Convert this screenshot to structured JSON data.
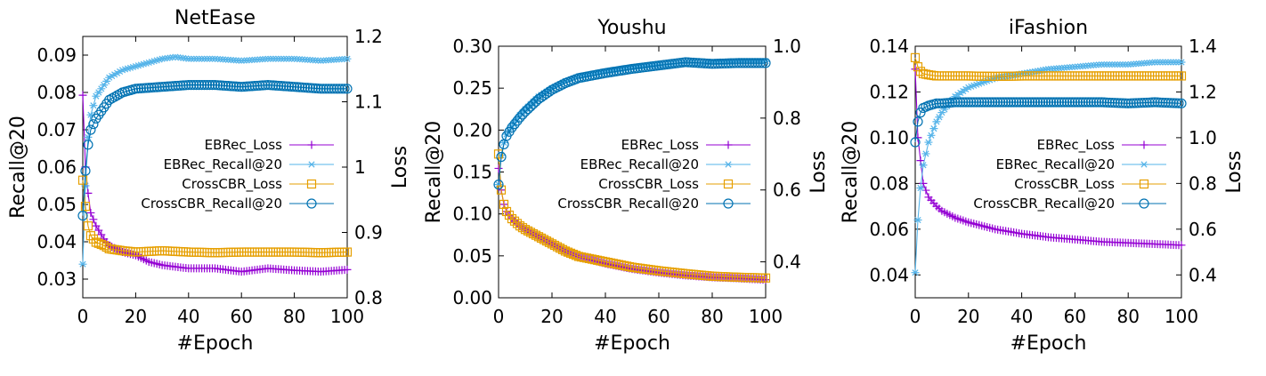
{
  "chart_data": [
    {
      "type": "line",
      "title": "NetEase",
      "xlabel": "#Epoch",
      "ylabel": "Recall@20",
      "y2label": "Loss",
      "xlim": [
        0,
        100
      ],
      "ylim": [
        0.025,
        0.095
      ],
      "y2lim": [
        0.8,
        1.2
      ],
      "xticks": [
        "0",
        "20",
        "40",
        "60",
        "80",
        "100"
      ],
      "yticks": [
        "0.03",
        "0.04",
        "0.05",
        "0.06",
        "0.07",
        "0.08",
        "0.09"
      ],
      "y2ticks": [
        "0.8",
        "0.9",
        "1",
        "1.1",
        "1.2"
      ],
      "legend_position": "center-right",
      "series": [
        {
          "name": "EBRec_Loss",
          "axis": "right",
          "color": "#9400d3",
          "marker": "plus",
          "x": [
            0,
            1,
            2,
            3,
            5,
            8,
            10,
            15,
            20,
            25,
            30,
            40,
            50,
            60,
            70,
            80,
            90,
            100
          ],
          "values": [
            1.11,
            1.0,
            0.96,
            0.93,
            0.91,
            0.89,
            0.88,
            0.87,
            0.865,
            0.855,
            0.85,
            0.845,
            0.845,
            0.84,
            0.845,
            0.842,
            0.84,
            0.843
          ]
        },
        {
          "name": "EBRec_Recall@20",
          "axis": "left",
          "color": "#56b4e9",
          "marker": "star",
          "x": [
            0,
            1,
            2,
            3,
            5,
            8,
            10,
            15,
            20,
            30,
            35,
            40,
            50,
            60,
            70,
            80,
            90,
            100
          ],
          "values": [
            0.034,
            0.055,
            0.068,
            0.074,
            0.079,
            0.082,
            0.084,
            0.086,
            0.087,
            0.089,
            0.0895,
            0.089,
            0.089,
            0.0885,
            0.089,
            0.089,
            0.0885,
            0.089
          ]
        },
        {
          "name": "CrossCBR_Loss",
          "axis": "right",
          "color": "#e69f00",
          "marker": "square",
          "x": [
            0,
            1,
            2,
            3,
            5,
            8,
            10,
            15,
            20,
            30,
            40,
            50,
            60,
            70,
            80,
            90,
            100
          ],
          "values": [
            0.98,
            0.94,
            0.91,
            0.895,
            0.885,
            0.88,
            0.875,
            0.872,
            0.87,
            0.872,
            0.87,
            0.869,
            0.87,
            0.87,
            0.87,
            0.869,
            0.87
          ]
        },
        {
          "name": "CrossCBR_Recall@20",
          "axis": "left",
          "color": "#0072b2",
          "marker": "circle",
          "x": [
            0,
            1,
            2,
            3,
            5,
            8,
            10,
            15,
            20,
            30,
            40,
            50,
            60,
            70,
            80,
            90,
            100
          ],
          "values": [
            0.047,
            0.059,
            0.066,
            0.07,
            0.073,
            0.076,
            0.078,
            0.08,
            0.081,
            0.0815,
            0.082,
            0.082,
            0.0815,
            0.082,
            0.0815,
            0.081,
            0.081
          ]
        }
      ]
    },
    {
      "type": "line",
      "title": "Youshu",
      "xlabel": "#Epoch",
      "ylabel": "Recall@20",
      "y2label": "Loss",
      "xlim": [
        0,
        100
      ],
      "ylim": [
        0,
        0.3
      ],
      "y2lim": [
        0.3,
        1.0
      ],
      "xticks": [
        "0",
        "20",
        "40",
        "60",
        "80",
        "100"
      ],
      "yticks": [
        "0.00",
        "0.05",
        "0.10",
        "0.15",
        "0.20",
        "0.25",
        "0.30"
      ],
      "y2ticks": [
        "0.4",
        "0.6",
        "0.8",
        "1.0"
      ],
      "legend_position": "center-right",
      "series": [
        {
          "name": "EBRec_Loss",
          "axis": "right",
          "color": "#9400d3",
          "marker": "plus",
          "x": [
            0,
            1,
            2,
            3,
            5,
            8,
            10,
            15,
            20,
            25,
            30,
            40,
            50,
            60,
            70,
            80,
            90,
            100
          ],
          "values": [
            0.66,
            0.6,
            0.56,
            0.54,
            0.52,
            0.5,
            0.49,
            0.47,
            0.45,
            0.43,
            0.415,
            0.395,
            0.38,
            0.37,
            0.362,
            0.357,
            0.354,
            0.35
          ]
        },
        {
          "name": "EBRec_Recall@20",
          "axis": "left",
          "color": "#56b4e9",
          "marker": "star",
          "x": [
            0,
            1,
            2,
            3,
            5,
            8,
            10,
            15,
            20,
            25,
            30,
            40,
            50,
            60,
            70,
            80,
            90,
            100
          ],
          "values": [
            0.135,
            0.17,
            0.185,
            0.195,
            0.205,
            0.218,
            0.225,
            0.24,
            0.25,
            0.258,
            0.264,
            0.27,
            0.275,
            0.278,
            0.28,
            0.281,
            0.282,
            0.282
          ]
        },
        {
          "name": "CrossCBR_Loss",
          "axis": "right",
          "color": "#e69f00",
          "marker": "square",
          "x": [
            0,
            1,
            2,
            3,
            5,
            8,
            10,
            15,
            20,
            25,
            30,
            40,
            50,
            60,
            70,
            80,
            90,
            100
          ],
          "values": [
            0.7,
            0.6,
            0.56,
            0.54,
            0.52,
            0.5,
            0.49,
            0.47,
            0.45,
            0.43,
            0.415,
            0.4,
            0.385,
            0.375,
            0.367,
            0.36,
            0.357,
            0.355
          ]
        },
        {
          "name": "CrossCBR_Recall@20",
          "axis": "left",
          "color": "#0072b2",
          "marker": "circle",
          "x": [
            0,
            1,
            2,
            3,
            5,
            8,
            10,
            15,
            20,
            25,
            30,
            40,
            50,
            60,
            70,
            80,
            90,
            100
          ],
          "values": [
            0.135,
            0.168,
            0.183,
            0.193,
            0.203,
            0.215,
            0.222,
            0.237,
            0.248,
            0.256,
            0.262,
            0.268,
            0.273,
            0.277,
            0.281,
            0.279,
            0.28,
            0.28
          ]
        }
      ]
    },
    {
      "type": "line",
      "title": "iFashion",
      "xlabel": "#Epoch",
      "ylabel": "Recall@20",
      "y2label": "Loss",
      "xlim": [
        0,
        100
      ],
      "ylim": [
        0.03,
        0.14
      ],
      "y2lim": [
        0.3,
        1.4
      ],
      "xticks": [
        "0",
        "20",
        "40",
        "60",
        "80",
        "100"
      ],
      "yticks": [
        "0.04",
        "0.06",
        "0.08",
        "0.10",
        "0.12",
        "0.14"
      ],
      "y2ticks": [
        "0.4",
        "0.6",
        "0.8",
        "1.0",
        "1.2",
        "1.4"
      ],
      "legend_position": "center-right",
      "series": [
        {
          "name": "EBRec_Loss",
          "axis": "right",
          "color": "#9400d3",
          "marker": "plus",
          "x": [
            0,
            1,
            2,
            3,
            5,
            8,
            10,
            15,
            20,
            30,
            40,
            50,
            60,
            70,
            80,
            90,
            100
          ],
          "values": [
            1.3,
            1.0,
            0.9,
            0.8,
            0.74,
            0.7,
            0.68,
            0.65,
            0.63,
            0.6,
            0.58,
            0.565,
            0.555,
            0.545,
            0.54,
            0.535,
            0.53
          ]
        },
        {
          "name": "EBRec_Recall@20",
          "axis": "left",
          "color": "#56b4e9",
          "marker": "star",
          "x": [
            0,
            1,
            2,
            3,
            5,
            8,
            10,
            15,
            20,
            30,
            40,
            50,
            60,
            70,
            80,
            90,
            100
          ],
          "values": [
            0.041,
            0.064,
            0.078,
            0.088,
            0.098,
            0.107,
            0.111,
            0.118,
            0.122,
            0.126,
            0.128,
            0.13,
            0.131,
            0.132,
            0.132,
            0.133,
            0.133
          ]
        },
        {
          "name": "CrossCBR_Loss",
          "axis": "right",
          "color": "#e69f00",
          "marker": "square",
          "x": [
            0,
            1,
            2,
            3,
            5,
            8,
            10,
            15,
            20,
            30,
            40,
            50,
            60,
            70,
            80,
            90,
            100
          ],
          "values": [
            1.35,
            1.31,
            1.29,
            1.28,
            1.275,
            1.27,
            1.27,
            1.27,
            1.27,
            1.268,
            1.27,
            1.27,
            1.27,
            1.27,
            1.27,
            1.27,
            1.27
          ]
        },
        {
          "name": "CrossCBR_Recall@20",
          "axis": "left",
          "color": "#0072b2",
          "marker": "circle",
          "x": [
            0,
            1,
            2,
            3,
            5,
            8,
            10,
            15,
            20,
            30,
            40,
            50,
            60,
            70,
            80,
            90,
            100
          ],
          "values": [
            0.098,
            0.107,
            0.111,
            0.113,
            0.114,
            0.115,
            0.115,
            0.1155,
            0.1155,
            0.1155,
            0.1155,
            0.1155,
            0.1155,
            0.1155,
            0.115,
            0.1155,
            0.115
          ]
        }
      ]
    }
  ]
}
